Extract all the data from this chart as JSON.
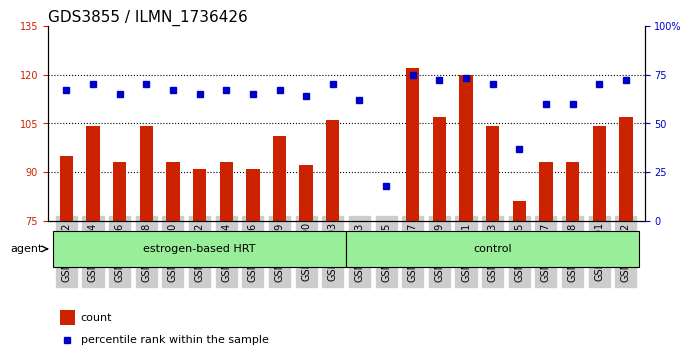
{
  "title": "GDS3855 / ILMN_1736426",
  "categories": [
    "GSM535582",
    "GSM535584",
    "GSM535586",
    "GSM535588",
    "GSM535590",
    "GSM535592",
    "GSM535594",
    "GSM535596",
    "GSM535599",
    "GSM535600",
    "GSM535603",
    "GSM535583",
    "GSM535585",
    "GSM535587",
    "GSM535589",
    "GSM535591",
    "GSM535593",
    "GSM535595",
    "GSM535597",
    "GSM535598",
    "GSM535601",
    "GSM535602"
  ],
  "bar_values": [
    95,
    104,
    93,
    104,
    93,
    91,
    93,
    91,
    101,
    92,
    106,
    75,
    75,
    122,
    107,
    120,
    104,
    81,
    93,
    93,
    104,
    107
  ],
  "percentile_values": [
    67,
    70,
    65,
    70,
    67,
    65,
    67,
    65,
    67,
    64,
    70,
    62,
    18,
    75,
    72,
    73,
    70,
    37,
    60,
    60,
    70,
    72
  ],
  "bar_color": "#cc2200",
  "dot_color": "#0000cc",
  "ylim_left": [
    75,
    135
  ],
  "ylim_right": [
    0,
    100
  ],
  "yticks_left": [
    75,
    90,
    105,
    120,
    135
  ],
  "yticks_right": [
    0,
    25,
    50,
    75,
    100
  ],
  "group1_label": "estrogen-based HRT",
  "group2_label": "control",
  "group1_count": 11,
  "group2_count": 11,
  "legend_count_label": "count",
  "legend_pct_label": "percentile rank within the sample",
  "agent_label": "agent",
  "background_color": "#ffffff",
  "group_bg_color": "#99ee99",
  "xtick_bg_color": "#cccccc",
  "title_fontsize": 11,
  "tick_fontsize": 7,
  "axis_label_fontsize": 8
}
